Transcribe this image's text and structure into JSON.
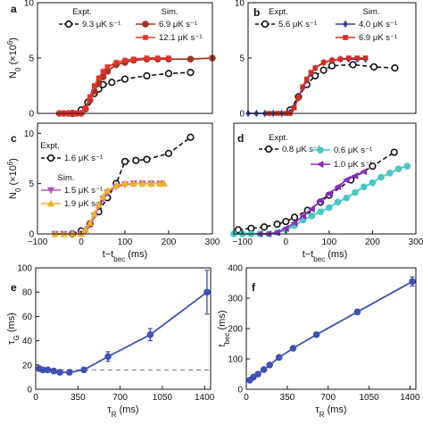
{
  "chart_data": [
    {
      "panel": "a",
      "type": "line",
      "xlim": [
        -100,
        300
      ],
      "ylim": [
        0,
        10
      ],
      "xticks": [],
      "yticks": [
        0,
        5,
        10
      ],
      "ylabel": "N0 (×10⁶)",
      "xlabel": "",
      "legend_titles": [
        "Expt.",
        "Sim."
      ],
      "series": [
        {
          "name": "9.3 μK s⁻¹",
          "group": "expt",
          "color": "#111111",
          "marker": "circle-open",
          "dashed": true,
          "x": [
            -20,
            0,
            15,
            30,
            40,
            50,
            70,
            100,
            150,
            200,
            250
          ],
          "y": [
            0,
            0.3,
            1.0,
            1.8,
            2.2,
            2.6,
            2.8,
            3.1,
            3.4,
            3.6,
            3.7
          ]
        },
        {
          "name": "6.9 μK s⁻¹",
          "group": "sim",
          "color": "#a83224",
          "marker": "circle",
          "x": [
            -50,
            -40,
            -30,
            -20,
            -10,
            0,
            10,
            20,
            30,
            40,
            50,
            60,
            80,
            100,
            120,
            150,
            175,
            200,
            250,
            300
          ],
          "y": [
            0,
            0,
            0,
            0,
            0,
            0,
            0.4,
            1.2,
            2.0,
            2.7,
            3.3,
            3.8,
            4.4,
            4.6,
            4.8,
            4.9,
            4.9,
            4.9,
            4.9,
            5.0
          ]
        },
        {
          "name": "12.1 μK s⁻¹",
          "group": "sim",
          "color": "#e8332a",
          "marker": "square",
          "x": [
            -50,
            -40,
            -30,
            -20,
            -10,
            0,
            10,
            20,
            30,
            40,
            50,
            60,
            80,
            100,
            120,
            150,
            175,
            200
          ],
          "y": [
            0,
            0,
            0,
            0,
            0,
            0,
            0.5,
            1.5,
            2.5,
            3.2,
            3.8,
            4.2,
            4.6,
            4.8,
            4.9,
            5.0,
            5.0,
            5.0
          ]
        }
      ]
    },
    {
      "panel": "b",
      "type": "line",
      "xlim": [
        -100,
        300
      ],
      "ylim": [
        0,
        10
      ],
      "xticks": [],
      "yticks": [
        0,
        5,
        10
      ],
      "ylabel": "",
      "xlabel": "",
      "legend_titles": [
        "Expt.",
        "Sim."
      ],
      "series": [
        {
          "name": "5.6 μK s⁻¹",
          "group": "expt",
          "color": "#111111",
          "marker": "circle-open",
          "dashed": true,
          "x": [
            0,
            20,
            40,
            60,
            80,
            100,
            150,
            200,
            250
          ],
          "y": [
            0.3,
            1.5,
            2.6,
            3.4,
            3.9,
            4.3,
            4.4,
            4.2,
            4.1
          ]
        },
        {
          "name": "4.0 μK s⁻¹",
          "group": "sim",
          "color": "#3b3f8f",
          "marker": "diamond",
          "x": [
            -100,
            -80,
            -60,
            -40,
            -20,
            0,
            10,
            20,
            30,
            40,
            50,
            60,
            80,
            100,
            120,
            140,
            160,
            180
          ],
          "y": [
            0,
            0,
            0,
            0,
            0,
            0.1,
            0.6,
            1.4,
            2.3,
            3.0,
            3.6,
            4.1,
            4.6,
            4.8,
            4.9,
            4.9,
            4.9,
            4.9
          ]
        },
        {
          "name": "6.9 μK s⁻¹",
          "group": "sim",
          "color": "#d42d24",
          "marker": "square",
          "x": [
            -50,
            -30,
            -10,
            0,
            10,
            20,
            30,
            40,
            50,
            60,
            80,
            100,
            120,
            140,
            160,
            180
          ],
          "y": [
            0,
            0,
            0,
            0,
            0.5,
            1.4,
            2.4,
            3.1,
            3.7,
            4.1,
            4.6,
            4.8,
            4.9,
            5.0,
            5.0,
            5.0
          ]
        }
      ]
    },
    {
      "panel": "c",
      "type": "line",
      "xlim": [
        -100,
        300
      ],
      "ylim": [
        0,
        11
      ],
      "xticks": [
        -100,
        0,
        100,
        200,
        300
      ],
      "yticks": [
        0,
        5,
        10
      ],
      "ylabel": "N0 (×10⁶)",
      "xlabel": "t−tbec (ms)",
      "legend_titles": [
        "Expt.",
        "Sim."
      ],
      "series": [
        {
          "name": "1.6 μK s⁻¹",
          "group": "expt",
          "color": "#111111",
          "marker": "circle-open",
          "dashed": true,
          "x": [
            -20,
            0,
            20,
            40,
            60,
            80,
            100,
            125,
            150,
            200,
            250
          ],
          "y": [
            0,
            0.3,
            1.0,
            2.2,
            3.6,
            5.0,
            7.2,
            7.3,
            7.4,
            8.0,
            9.6
          ]
        },
        {
          "name": "1.5 μK s⁻¹",
          "group": "sim",
          "color": "#b34fc0",
          "marker": "triangle-down",
          "x": [
            -60,
            -40,
            -20,
            0,
            10,
            20,
            30,
            40,
            50,
            60,
            80,
            100,
            120,
            140,
            160,
            180
          ],
          "y": [
            0,
            0,
            0,
            0,
            0.3,
            0.9,
            1.8,
            2.7,
            3.5,
            4.1,
            4.7,
            4.9,
            5.0,
            5.0,
            5.0,
            5.0
          ]
        },
        {
          "name": "1.9 μK s⁻¹",
          "group": "sim",
          "color": "#f0b323",
          "marker": "triangle-up",
          "x": [
            -60,
            -40,
            -20,
            0,
            10,
            20,
            30,
            40,
            50,
            60,
            80,
            100,
            120,
            140,
            160,
            180,
            190
          ],
          "y": [
            0,
            0,
            0,
            0,
            0.4,
            1.1,
            2.0,
            2.9,
            3.7,
            4.3,
            4.8,
            5.0,
            5.0,
            5.0,
            5.0,
            5.0,
            5.0
          ]
        }
      ]
    },
    {
      "panel": "d",
      "type": "line",
      "xlim": [
        -120,
        300
      ],
      "ylim": [
        0,
        8
      ],
      "xticks": [
        -100,
        0,
        100,
        200,
        300
      ],
      "yticks": [],
      "ylabel": "",
      "xlabel": "t−tbec (ms)",
      "legend_titles": [
        "Expt.",
        ""
      ],
      "series": [
        {
          "name": "0.8 μK s⁻¹",
          "group": "expt",
          "color": "#111111",
          "marker": "circle-open",
          "dashed": true,
          "x": [
            -110,
            -80,
            -50,
            -20,
            0,
            20,
            50,
            80,
            100,
            150,
            200,
            250
          ],
          "y": [
            0.3,
            0.4,
            0.5,
            0.7,
            0.9,
            1.2,
            1.7,
            2.3,
            2.8,
            3.9,
            4.9,
            5.9
          ]
        },
        {
          "name": "0.6 μK s⁻¹",
          "group": "sim",
          "color": "#45c9c4",
          "marker": "circle",
          "x": [
            -120,
            -100,
            -80,
            -60,
            -40,
            -20,
            0,
            20,
            40,
            60,
            80,
            100,
            120,
            140,
            160,
            180,
            200,
            220,
            240,
            260,
            280
          ],
          "y": [
            0,
            0,
            0,
            0,
            0,
            0.1,
            0.3,
            0.6,
            1.0,
            1.3,
            1.6,
            1.9,
            2.3,
            2.6,
            3.0,
            3.4,
            3.7,
            4.1,
            4.4,
            4.7,
            4.9
          ]
        },
        {
          "name": "1.0 μK s⁻¹",
          "group": "sim",
          "color": "#8a2dbf",
          "marker": "triangle-left",
          "x": [
            -60,
            -40,
            -20,
            0,
            20,
            40,
            60,
            80,
            100,
            120,
            140,
            160,
            180
          ],
          "y": [
            0,
            0,
            0.1,
            0.4,
            0.8,
            1.3,
            1.8,
            2.4,
            2.9,
            3.4,
            3.9,
            4.2,
            4.5
          ]
        }
      ]
    },
    {
      "panel": "e",
      "type": "scatter",
      "xlim": [
        0,
        1450
      ],
      "ylim": [
        0,
        100
      ],
      "xticks": [
        0,
        350,
        700,
        1050,
        1400
      ],
      "yticks": [
        0,
        20,
        40,
        60,
        80,
        100
      ],
      "ylabel": "τG (ms)",
      "xlabel": "τR (ms)",
      "reference_line": {
        "y": 16,
        "dashed": true
      },
      "series": [
        {
          "name": "",
          "color": "#3f51b5",
          "marker": "circle",
          "x": [
            30,
            60,
            100,
            150,
            200,
            280,
            400,
            600,
            950,
            1420
          ],
          "y": [
            17,
            16,
            16,
            15,
            14,
            14,
            16,
            27,
            45,
            80
          ],
          "err": [
            2,
            2,
            2,
            2,
            2,
            2,
            2,
            4,
            5,
            18
          ]
        }
      ]
    },
    {
      "panel": "f",
      "type": "scatter",
      "xlim": [
        0,
        1450
      ],
      "ylim": [
        0,
        400
      ],
      "xticks": [
        0,
        350,
        700,
        1050,
        1400
      ],
      "yticks": [
        0,
        100,
        200,
        300,
        400
      ],
      "ylabel": "tbec (ms)",
      "xlabel": "τR (ms)",
      "series": [
        {
          "name": "",
          "color": "#3f51b5",
          "marker": "circle",
          "x": [
            30,
            60,
            100,
            150,
            200,
            280,
            400,
            600,
            950,
            1420
          ],
          "y": [
            30,
            40,
            50,
            65,
            80,
            105,
            135,
            180,
            255,
            355
          ],
          "err": [
            3,
            3,
            3,
            3,
            3,
            3,
            4,
            5,
            8,
            15
          ]
        }
      ]
    }
  ]
}
